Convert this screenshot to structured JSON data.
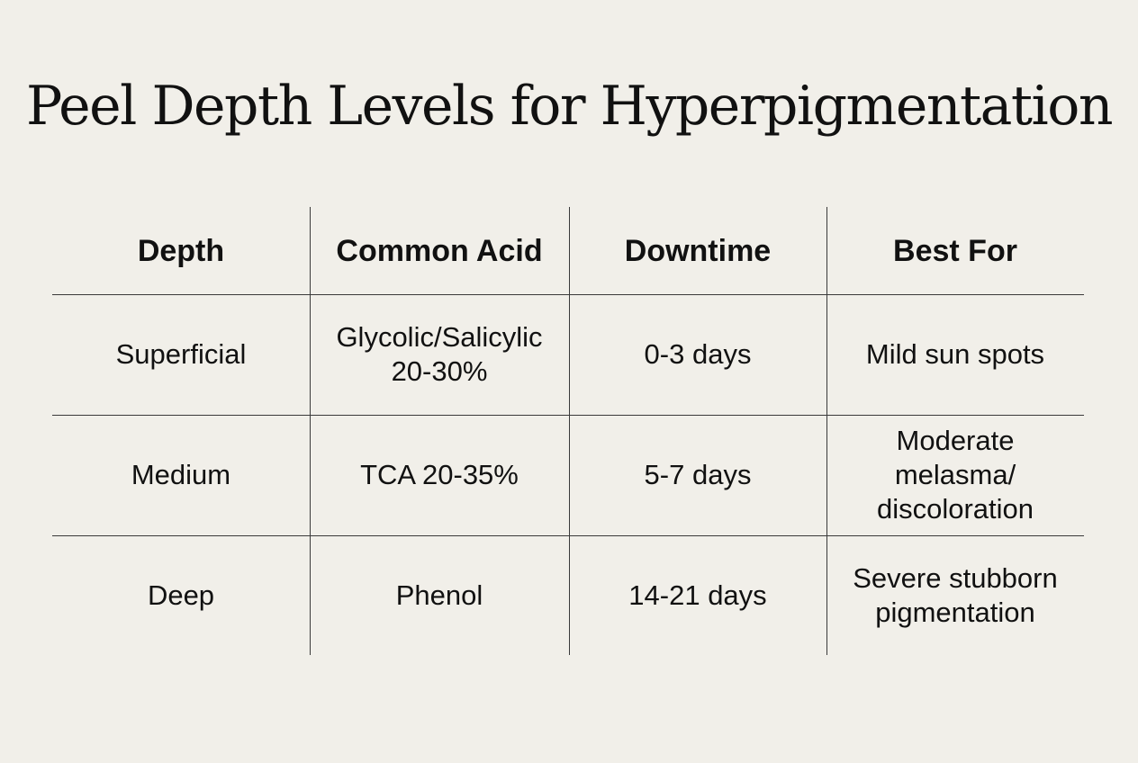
{
  "title": "Peel Depth Levels for Hyperpigmentation",
  "table": {
    "headers": [
      "Depth",
      "Common Acid",
      "Downtime",
      "Best For"
    ],
    "rows": [
      [
        "Superficial",
        "Glycolic/Salicylic 20-30%",
        "0-3 days",
        "Mild sun spots"
      ],
      [
        "Medium",
        "TCA 20-35%",
        "5-7 days",
        "Moderate melasma/ discoloration"
      ],
      [
        "Deep",
        "Phenol",
        "14-21 days",
        "Severe stubborn pigmentation"
      ]
    ]
  }
}
